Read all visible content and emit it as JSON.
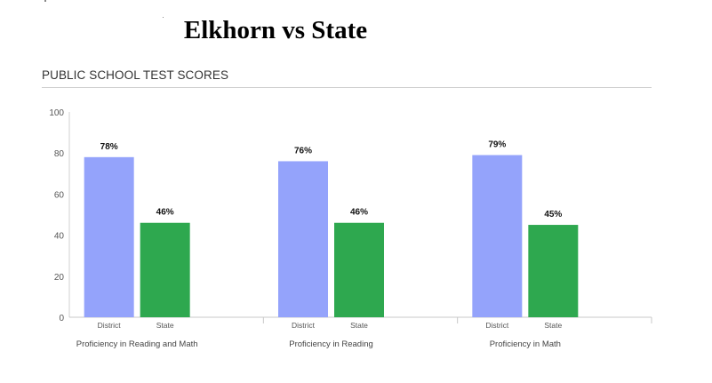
{
  "title": "Elkhorn vs State",
  "subtitle": "PUBLIC SCHOOL TEST SCORES",
  "chart_data": {
    "type": "bar",
    "ylim": [
      0,
      100
    ],
    "yticks": [
      0,
      20,
      40,
      60,
      80,
      100
    ],
    "grid": false,
    "groups": [
      {
        "label": "Proficiency in Reading and Math",
        "bars": [
          {
            "label": "District",
            "value": 78,
            "data_label": "78%"
          },
          {
            "label": "State",
            "value": 46,
            "data_label": "46%"
          }
        ]
      },
      {
        "label": "Proficiency in Reading",
        "bars": [
          {
            "label": "District",
            "value": 76,
            "data_label": "76%"
          },
          {
            "label": "State",
            "value": 46,
            "data_label": "46%"
          }
        ]
      },
      {
        "label": "Proficiency in Math",
        "bars": [
          {
            "label": "District",
            "value": 79,
            "data_label": "79%"
          },
          {
            "label": "State",
            "value": 45,
            "data_label": "45%"
          }
        ]
      }
    ],
    "colors": {
      "District": "#94a3fb",
      "State": "#2ea84f"
    }
  }
}
